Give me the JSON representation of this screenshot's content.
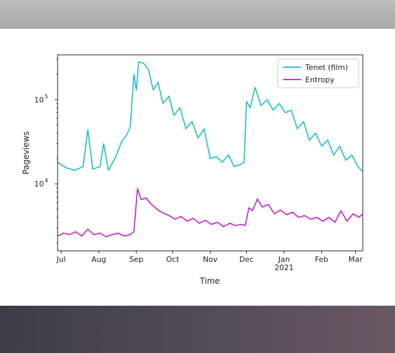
{
  "chart_data": {
    "type": "line",
    "title": "",
    "xlabel": "Time",
    "ylabel": "Pageviews",
    "yscale": "log",
    "ylim": [
      1600,
      340000
    ],
    "xlim": [
      "2020-06-28",
      "2021-03-07"
    ],
    "grid": false,
    "legend_position": "top-right",
    "x_ticks": [
      {
        "date": "2020-07-01",
        "label": "Jul",
        "sublabel": ""
      },
      {
        "date": "2020-08-01",
        "label": "Aug",
        "sublabel": ""
      },
      {
        "date": "2020-09-01",
        "label": "Sep",
        "sublabel": ""
      },
      {
        "date": "2020-10-01",
        "label": "Oct",
        "sublabel": ""
      },
      {
        "date": "2020-11-01",
        "label": "Nov",
        "sublabel": ""
      },
      {
        "date": "2020-12-01",
        "label": "Dec",
        "sublabel": ""
      },
      {
        "date": "2021-01-01",
        "label": "Jan",
        "sublabel": "2021"
      },
      {
        "date": "2021-02-01",
        "label": "Feb",
        "sublabel": ""
      },
      {
        "date": "2021-03-01",
        "label": "Mar",
        "sublabel": ""
      }
    ],
    "y_ticks": [
      {
        "value": 10000,
        "base": "10",
        "exp": "4"
      },
      {
        "value": 100000,
        "base": "10",
        "exp": "5"
      }
    ],
    "series": [
      {
        "name": "Tenet (film)",
        "color": "#17becf",
        "points": [
          [
            "2020-06-28",
            18000
          ],
          [
            "2020-07-05",
            15500
          ],
          [
            "2020-07-12",
            14500
          ],
          [
            "2020-07-19",
            16000
          ],
          [
            "2020-07-23",
            44000
          ],
          [
            "2020-07-27",
            15000
          ],
          [
            "2020-08-02",
            16000
          ],
          [
            "2020-08-05",
            30000
          ],
          [
            "2020-08-09",
            14500
          ],
          [
            "2020-08-15",
            21000
          ],
          [
            "2020-08-20",
            32000
          ],
          [
            "2020-08-24",
            38000
          ],
          [
            "2020-08-27",
            48000
          ],
          [
            "2020-08-30",
            200000
          ],
          [
            "2020-09-01",
            130000
          ],
          [
            "2020-09-03",
            280000
          ],
          [
            "2020-09-07",
            270000
          ],
          [
            "2020-09-11",
            230000
          ],
          [
            "2020-09-15",
            130000
          ],
          [
            "2020-09-19",
            160000
          ],
          [
            "2020-09-23",
            90000
          ],
          [
            "2020-09-28",
            110000
          ],
          [
            "2020-10-02",
            65000
          ],
          [
            "2020-10-07",
            80000
          ],
          [
            "2020-10-12",
            45000
          ],
          [
            "2020-10-17",
            55000
          ],
          [
            "2020-10-22",
            35000
          ],
          [
            "2020-10-27",
            45000
          ],
          [
            "2020-11-01",
            20000
          ],
          [
            "2020-11-06",
            21000
          ],
          [
            "2020-11-11",
            18000
          ],
          [
            "2020-11-16",
            22000
          ],
          [
            "2020-11-21",
            16000
          ],
          [
            "2020-11-26",
            17000
          ],
          [
            "2020-11-29",
            18000
          ],
          [
            "2020-12-01",
            95000
          ],
          [
            "2020-12-04",
            80000
          ],
          [
            "2020-12-08",
            140000
          ],
          [
            "2020-12-13",
            85000
          ],
          [
            "2020-12-18",
            100000
          ],
          [
            "2020-12-23",
            75000
          ],
          [
            "2020-12-28",
            90000
          ],
          [
            "2021-01-02",
            70000
          ],
          [
            "2021-01-07",
            75000
          ],
          [
            "2021-01-12",
            45000
          ],
          [
            "2021-01-17",
            55000
          ],
          [
            "2021-01-22",
            33000
          ],
          [
            "2021-01-27",
            40000
          ],
          [
            "2021-02-01",
            28000
          ],
          [
            "2021-02-06",
            33000
          ],
          [
            "2021-02-11",
            22000
          ],
          [
            "2021-02-16",
            28000
          ],
          [
            "2021-02-21",
            19000
          ],
          [
            "2021-02-26",
            22000
          ],
          [
            "2021-03-03",
            16000
          ],
          [
            "2021-03-07",
            14000
          ]
        ]
      },
      {
        "name": "Entropy",
        "color": "#c21ec6",
        "points": [
          [
            "2020-06-28",
            2400
          ],
          [
            "2020-07-03",
            2600
          ],
          [
            "2020-07-08",
            2500
          ],
          [
            "2020-07-13",
            2700
          ],
          [
            "2020-07-18",
            2400
          ],
          [
            "2020-07-23",
            2900
          ],
          [
            "2020-07-28",
            2500
          ],
          [
            "2020-08-02",
            2600
          ],
          [
            "2020-08-07",
            2350
          ],
          [
            "2020-08-12",
            2500
          ],
          [
            "2020-08-17",
            2600
          ],
          [
            "2020-08-22",
            2400
          ],
          [
            "2020-08-27",
            2500
          ],
          [
            "2020-08-30",
            2700
          ],
          [
            "2020-09-02",
            8800
          ],
          [
            "2020-09-05",
            6500
          ],
          [
            "2020-09-09",
            6800
          ],
          [
            "2020-09-13",
            5800
          ],
          [
            "2020-09-18",
            5000
          ],
          [
            "2020-09-23",
            4500
          ],
          [
            "2020-09-28",
            4200
          ],
          [
            "2020-10-03",
            3800
          ],
          [
            "2020-10-08",
            4100
          ],
          [
            "2020-10-13",
            3600
          ],
          [
            "2020-10-18",
            3900
          ],
          [
            "2020-10-23",
            3400
          ],
          [
            "2020-10-28",
            3700
          ],
          [
            "2020-11-02",
            3300
          ],
          [
            "2020-11-07",
            3500
          ],
          [
            "2020-11-12",
            3100
          ],
          [
            "2020-11-17",
            3400
          ],
          [
            "2020-11-22",
            3200
          ],
          [
            "2020-11-27",
            3300
          ],
          [
            "2020-11-30",
            3200
          ],
          [
            "2020-12-03",
            5200
          ],
          [
            "2020-12-06",
            4800
          ],
          [
            "2020-12-10",
            6600
          ],
          [
            "2020-12-14",
            5300
          ],
          [
            "2020-12-19",
            5700
          ],
          [
            "2020-12-24",
            4400
          ],
          [
            "2020-12-29",
            4900
          ],
          [
            "2021-01-03",
            4300
          ],
          [
            "2021-01-08",
            4600
          ],
          [
            "2021-01-13",
            4000
          ],
          [
            "2021-01-18",
            4200
          ],
          [
            "2021-01-23",
            3800
          ],
          [
            "2021-01-28",
            4000
          ],
          [
            "2021-02-02",
            3600
          ],
          [
            "2021-02-07",
            4000
          ],
          [
            "2021-02-12",
            3500
          ],
          [
            "2021-02-17",
            4800
          ],
          [
            "2021-02-22",
            3600
          ],
          [
            "2021-02-27",
            4400
          ],
          [
            "2021-03-04",
            4000
          ],
          [
            "2021-03-07",
            4400
          ]
        ]
      }
    ]
  }
}
